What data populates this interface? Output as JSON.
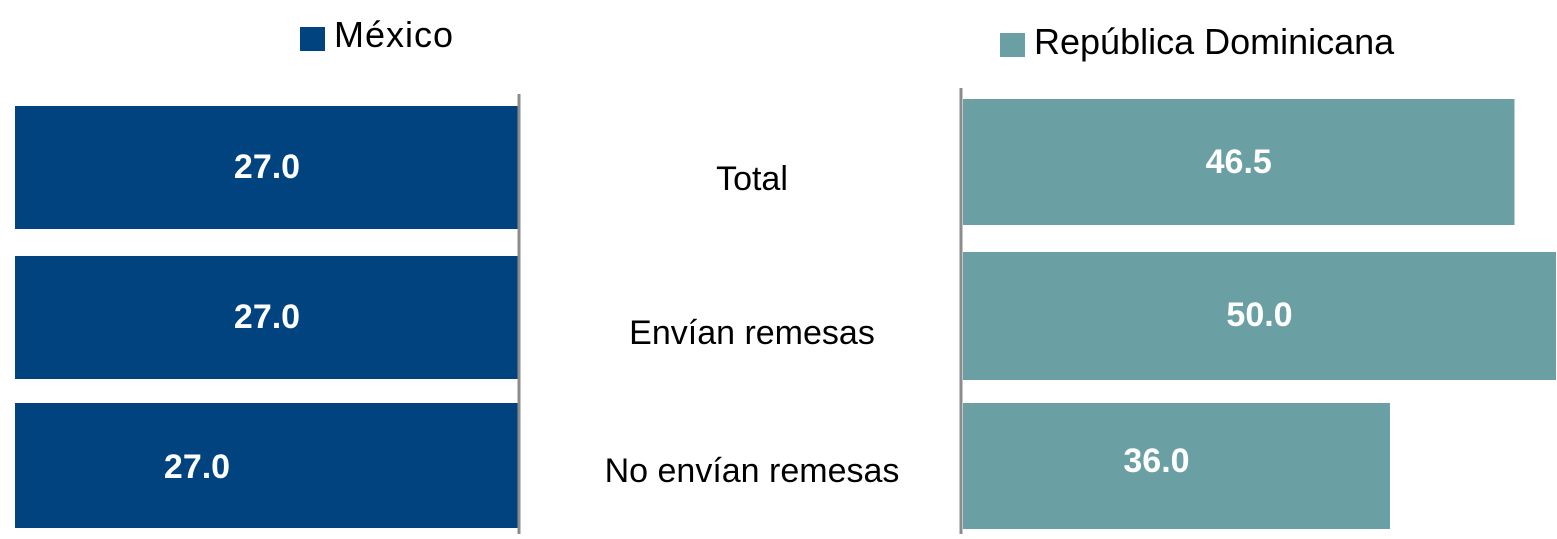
{
  "chart_data": {
    "type": "bar",
    "orientation": "horizontal-butterfly",
    "categories": [
      "Total",
      "Envían remesas",
      "No envían remesas"
    ],
    "series": [
      {
        "name": "México",
        "values": [
          27.0,
          27.0,
          27.0
        ],
        "value_labels": [
          "27.0",
          "27.0",
          "27.0"
        ],
        "color": "#00437e"
      },
      {
        "name": "República Dominicana",
        "values": [
          46.5,
          50.0,
          36.0
        ],
        "value_labels": [
          "46.5",
          "50.0",
          "36.0"
        ],
        "color": "#6aa0a4"
      }
    ],
    "title": "",
    "xlabel": "",
    "ylabel": "",
    "grid": false,
    "legend_position": "top",
    "colors": {
      "axis_line": "#8c8c8c",
      "label_text": "#000000",
      "value_text": "#ffffff"
    }
  }
}
